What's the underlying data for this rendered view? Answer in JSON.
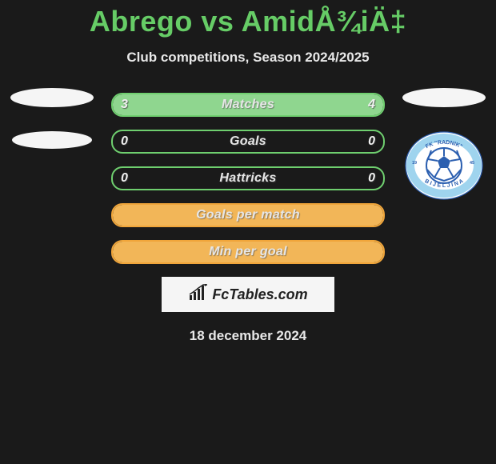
{
  "title": "Abrego vs AmidÅ¾iÄ‡",
  "subtitle": "Club competitions, Season 2024/2025",
  "date": "18 december 2024",
  "footer_brand": "FcTables.com",
  "colors": {
    "title": "#66cc66",
    "bar_green_border": "#6fcf6f",
    "bar_green_fill": "#8fd68f",
    "bar_orange_border": "#f0a53a",
    "bar_orange_fill": "#f2b658",
    "background": "#1a1a1a",
    "text": "#e8e8e8",
    "footer_bg": "#f5f5f5"
  },
  "club_logo_right": {
    "outer_text_top": "FK \"RADNIK\"",
    "outer_text_bottom": "BIJELJINA",
    "year": "1945",
    "arc_color": "#9fd4ee",
    "ball_outline": "#2b5fb0"
  },
  "bars": [
    {
      "label": "Matches",
      "left": "3",
      "right": "4",
      "style": "green",
      "fill": "both",
      "left_pct": 40,
      "right_pct": 60
    },
    {
      "label": "Goals",
      "left": "0",
      "right": "0",
      "style": "green",
      "fill": "none"
    },
    {
      "label": "Hattricks",
      "left": "0",
      "right": "0",
      "style": "green",
      "fill": "none"
    },
    {
      "label": "Goals per match",
      "left": "",
      "right": "",
      "style": "orange",
      "fill": "full"
    },
    {
      "label": "Min per goal",
      "left": "",
      "right": "",
      "style": "orange",
      "fill": "full"
    }
  ]
}
